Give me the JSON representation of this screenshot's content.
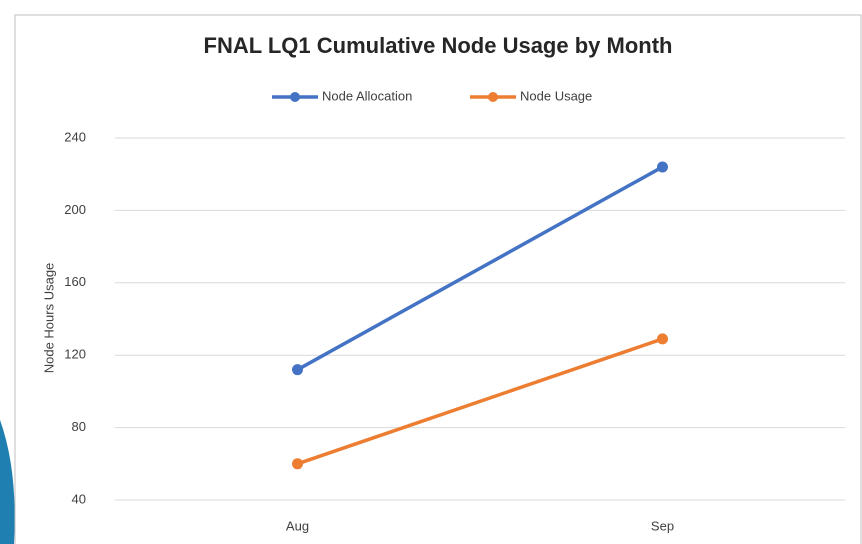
{
  "chart_data": {
    "type": "line",
    "title": "FNAL LQ1 Cumulative Node Usage by Month",
    "y_label": "Node Hours Usage",
    "categories": [
      "Aug",
      "Sep"
    ],
    "series": [
      {
        "name": "Node Allocation",
        "color": "#4472c4",
        "values": [
          112,
          224
        ]
      },
      {
        "name": "Node Usage",
        "color": "#ed7d31",
        "values": [
          60,
          129
        ]
      }
    ],
    "ylim": [
      40,
      240
    ],
    "yticks": [
      40,
      80,
      120,
      160,
      200,
      240
    ],
    "grid": true,
    "legend": "top"
  }
}
